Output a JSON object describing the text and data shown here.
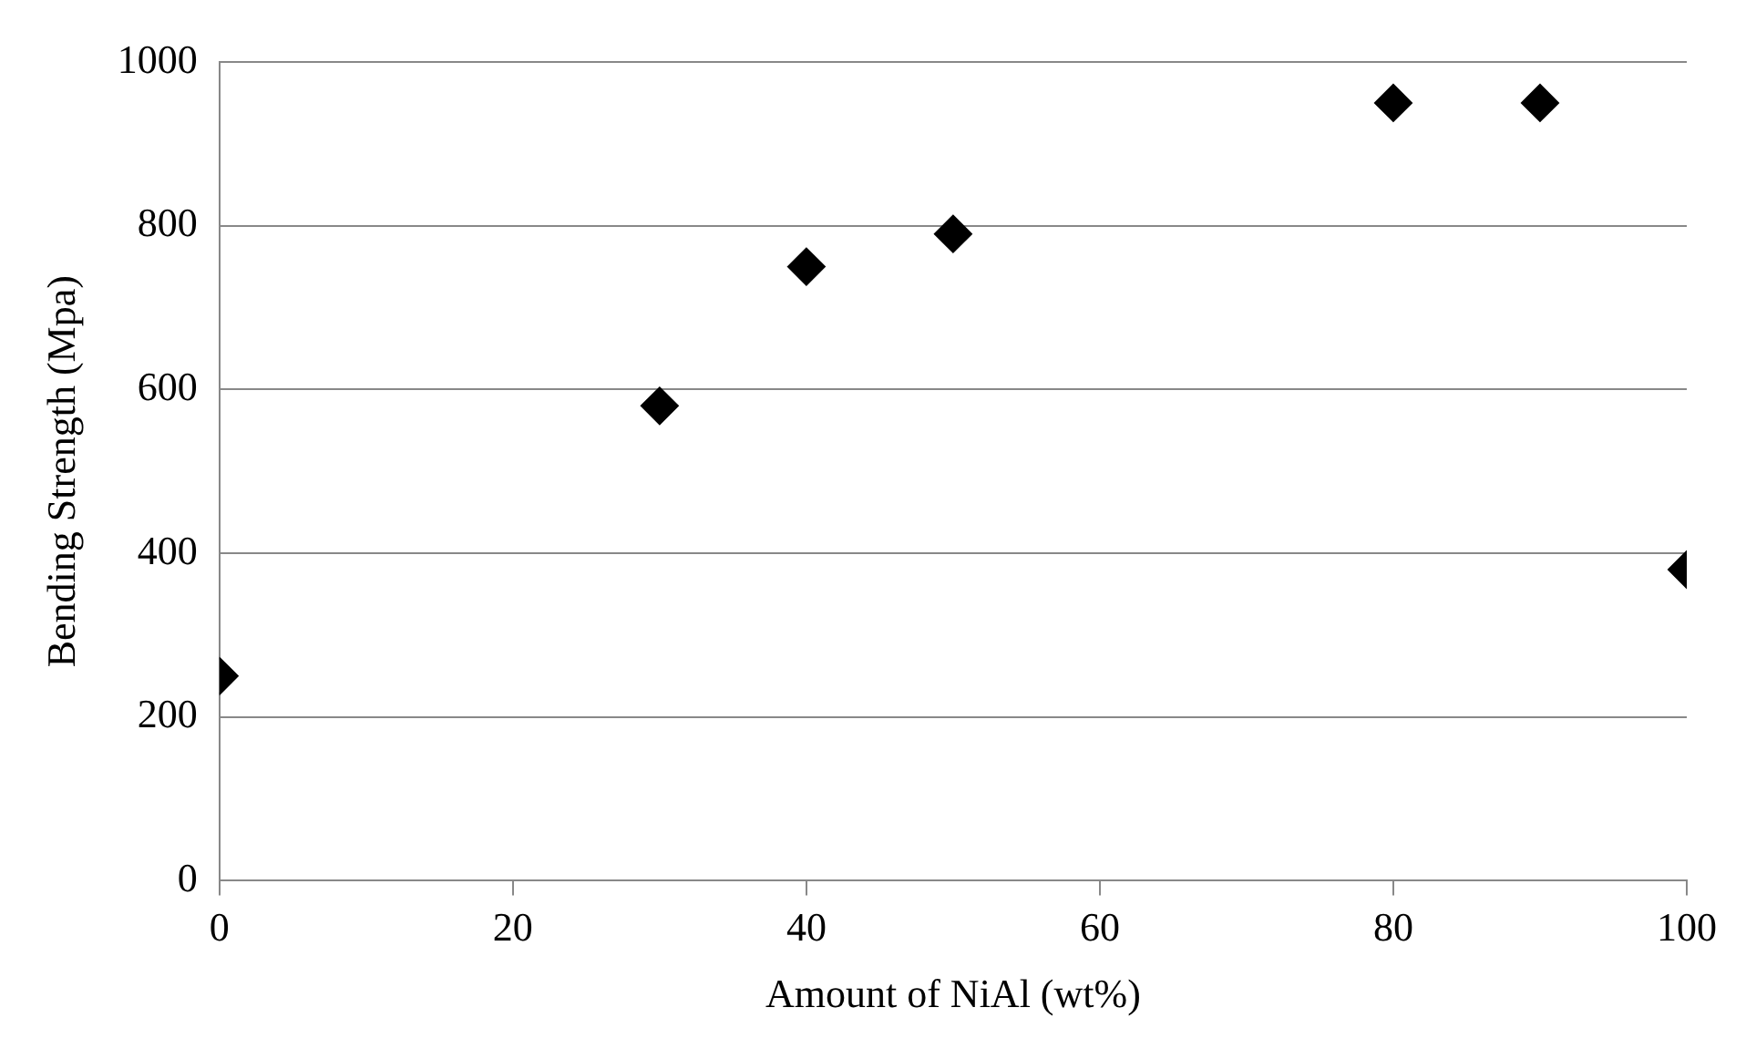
{
  "chart_data": {
    "type": "scatter",
    "xlabel": "Amount of NiAl (wt%)",
    "ylabel": "Bending Strength (Mpa)",
    "x": [
      0,
      30,
      40,
      50,
      80,
      90,
      100
    ],
    "series": [
      {
        "color": "#000000",
        "values": [
          250,
          580,
          750,
          790,
          950,
          950,
          380
        ]
      }
    ],
    "xlim": [
      0,
      100
    ],
    "xticks": [
      0,
      20,
      40,
      60,
      80,
      100
    ],
    "ylim": [
      0,
      1000
    ],
    "yticks": [
      0,
      200,
      400,
      600,
      800,
      1000
    ],
    "grid": "y",
    "legend": false,
    "marker": "diamond"
  }
}
